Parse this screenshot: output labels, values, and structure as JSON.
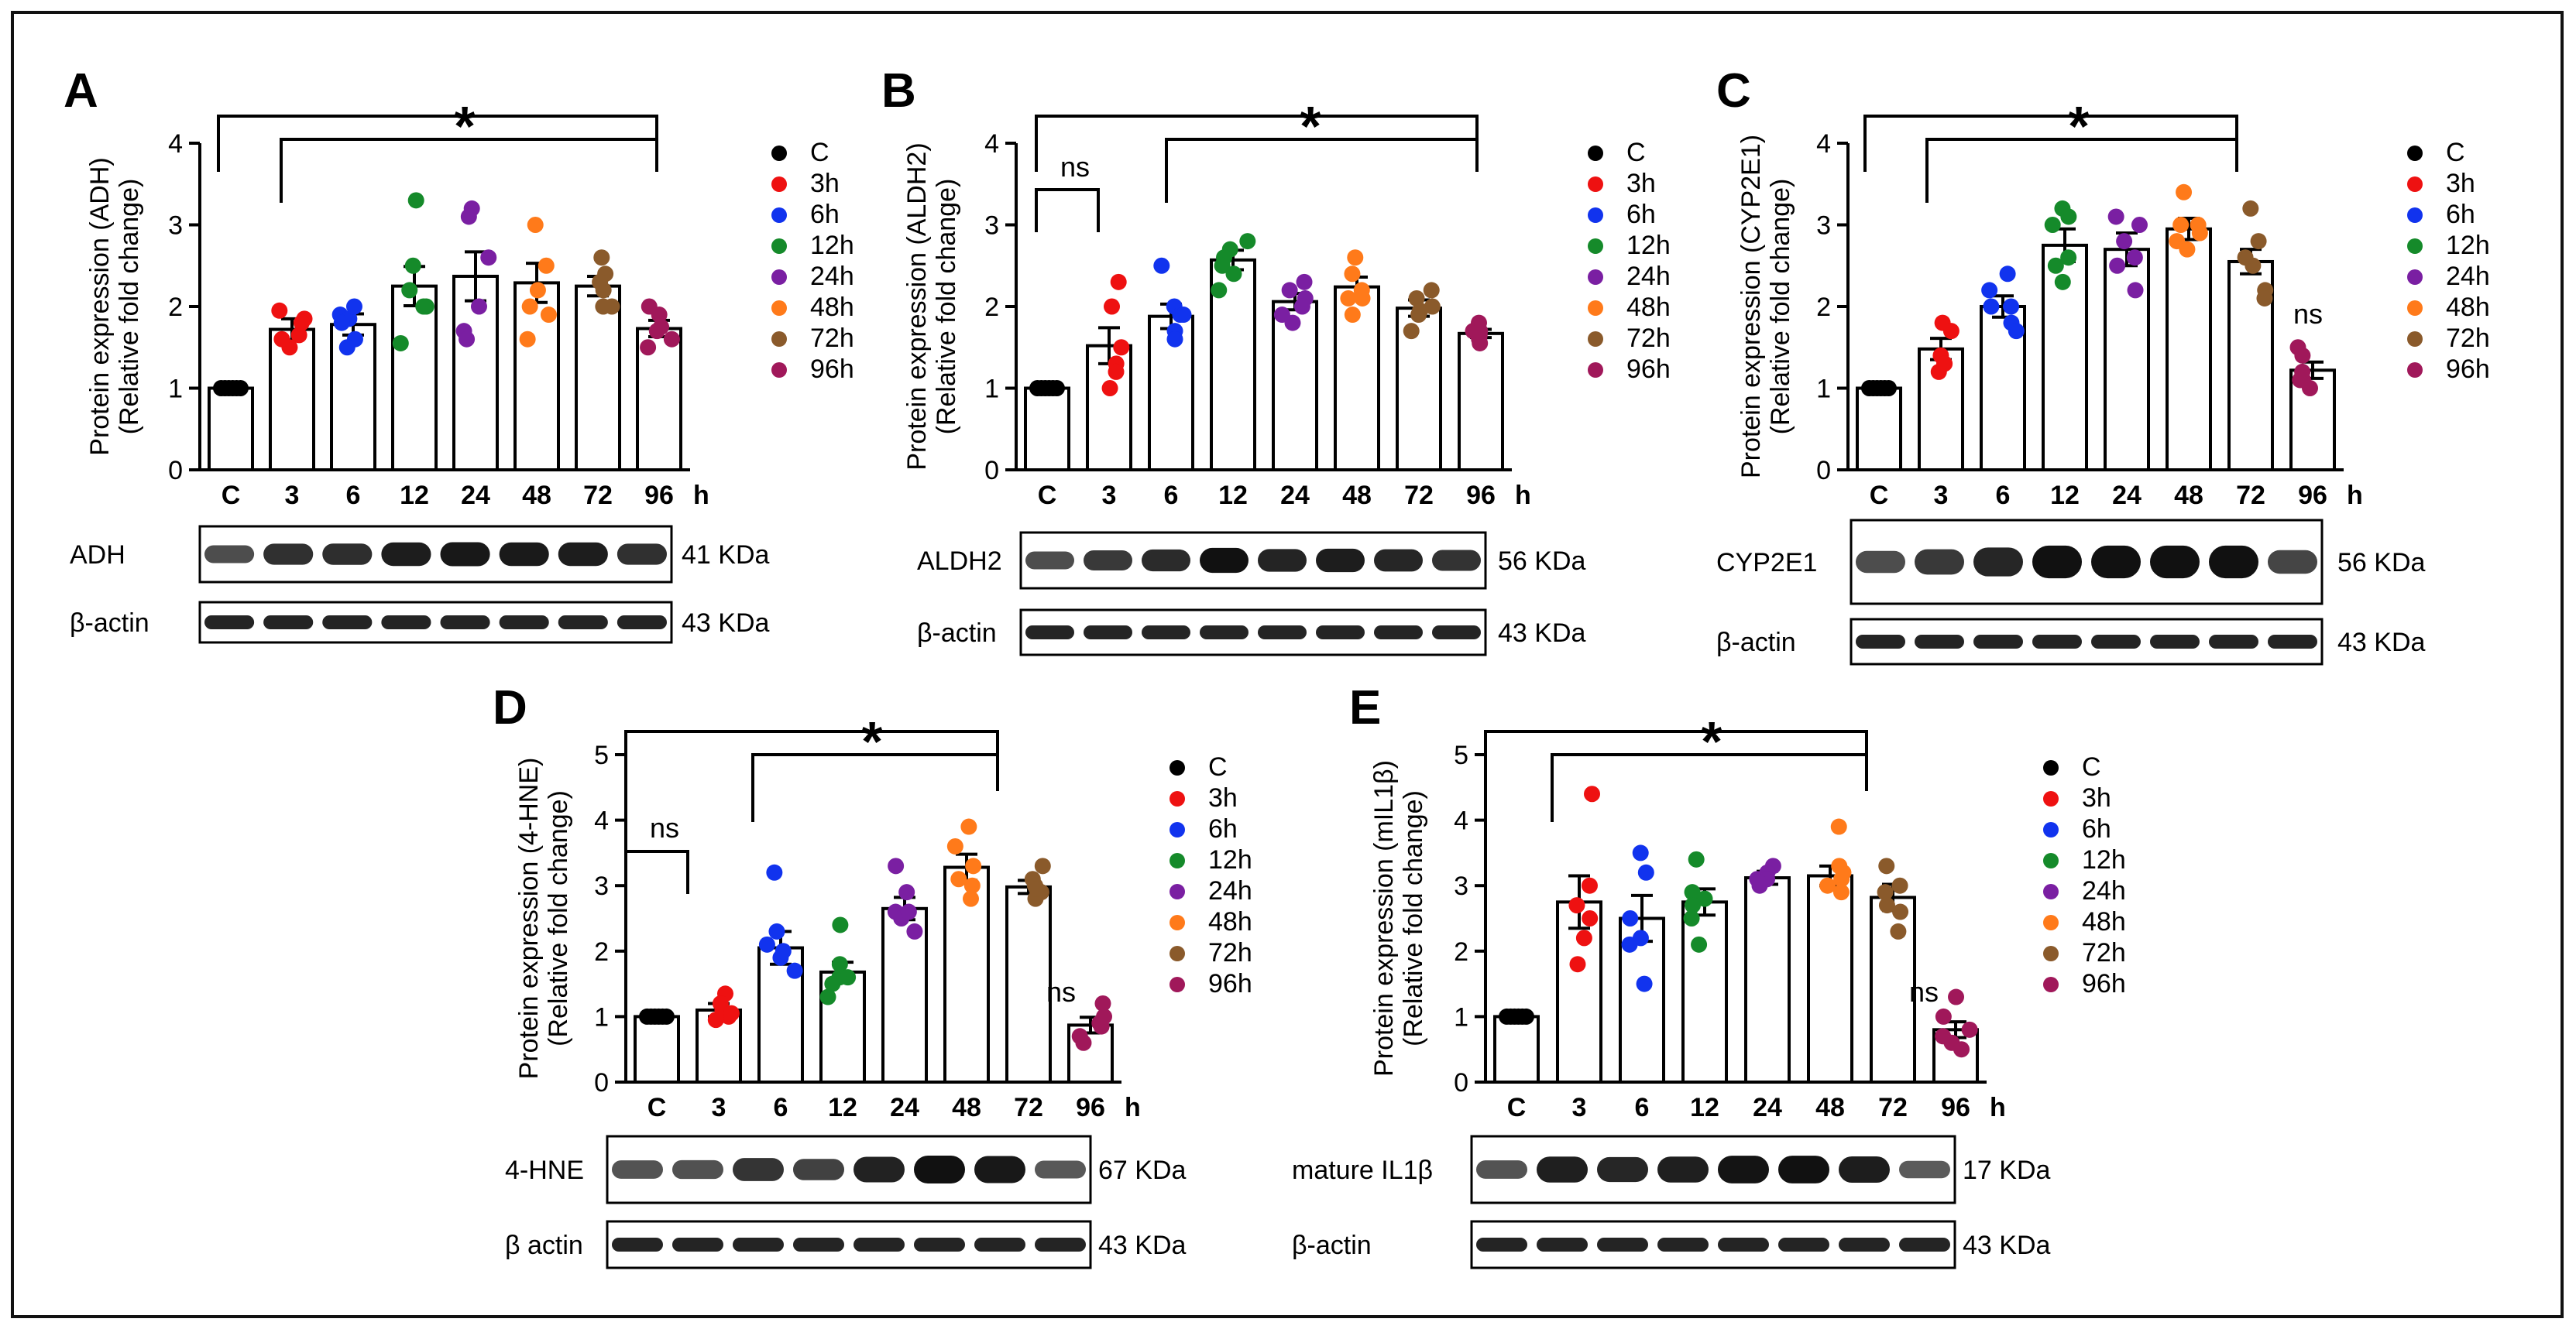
{
  "legend_entries": [
    "C",
    "3h",
    "6h",
    "12h",
    "24h",
    "48h",
    "72h",
    "96h"
  ],
  "legend_colors": [
    "#000000",
    "#ee1111",
    "#1133ee",
    "#158a2a",
    "#7a1fa2",
    "#ff7a1a",
    "#8a5a2b",
    "#a0185a"
  ],
  "x_unit": "h",
  "chart_data": [
    {
      "type": "bar",
      "panel": "A",
      "ylabel_line1": "Protein expression (ADH)",
      "ylabel_line2": "(Relative fold change)",
      "categories": [
        "C",
        "3",
        "6",
        "12",
        "24",
        "48",
        "72",
        "96"
      ],
      "values": [
        1.0,
        1.72,
        1.78,
        2.25,
        2.37,
        2.29,
        2.25,
        1.73
      ],
      "errors": [
        0.01,
        0.13,
        0.13,
        0.24,
        0.3,
        0.24,
        0.12,
        0.1
      ],
      "points": [
        [
          1,
          1,
          1,
          1,
          1,
          1
        ],
        [
          1.85,
          1.65,
          1.95,
          1.5,
          1.8,
          1.6
        ],
        [
          1.9,
          1.6,
          1.85,
          1.5,
          2.0,
          1.8
        ],
        [
          3.3,
          2.5,
          2.2,
          2.0,
          1.55,
          2.0
        ],
        [
          3.2,
          3.1,
          2.6,
          2.0,
          1.7,
          1.6
        ],
        [
          3.0,
          2.5,
          2.2,
          1.9,
          2.0,
          1.6
        ],
        [
          2.6,
          2.4,
          2.3,
          2.2,
          2.0,
          2.0
        ],
        [
          2.0,
          1.9,
          1.75,
          1.5,
          1.7,
          1.6
        ]
      ],
      "ylim": [
        0,
        4
      ],
      "yticks": [
        0,
        1,
        2,
        3,
        4
      ],
      "significance": {
        "label": "*",
        "ns_label": ""
      },
      "blot": {
        "target": "ADH",
        "target_kda": "41 KDa",
        "loading": "β-actin",
        "loading_kda": "43 KDa"
      }
    },
    {
      "type": "bar",
      "panel": "B",
      "ylabel_line1": "Protein expression (ALDH2)",
      "ylabel_line2": "(Relative fold change)",
      "categories": [
        "C",
        "3",
        "6",
        "12",
        "24",
        "48",
        "72",
        "96"
      ],
      "values": [
        1.0,
        1.52,
        1.88,
        2.57,
        2.06,
        2.24,
        1.98,
        1.67
      ],
      "errors": [
        0.01,
        0.22,
        0.15,
        0.12,
        0.1,
        0.12,
        0.1,
        0.05
      ],
      "points": [
        [
          1,
          1,
          1,
          1,
          1,
          1
        ],
        [
          2.3,
          2.0,
          1.5,
          1.3,
          1.2,
          1.0
        ],
        [
          2.5,
          2.0,
          1.9,
          1.7,
          1.6,
          1.9
        ],
        [
          2.8,
          2.7,
          2.6,
          2.5,
          2.2,
          2.4
        ],
        [
          2.3,
          2.1,
          2.0,
          1.9,
          1.8,
          2.2
        ],
        [
          2.6,
          2.4,
          2.2,
          2.1,
          1.9,
          2.1
        ],
        [
          2.2,
          2.1,
          2.0,
          1.9,
          1.7,
          1.95
        ],
        [
          1.8,
          1.7,
          1.65,
          1.6,
          1.55,
          1.7
        ]
      ],
      "ylim": [
        0,
        4
      ],
      "yticks": [
        0,
        1,
        2,
        3,
        4
      ],
      "significance": {
        "label": "*",
        "ns_label": "ns"
      },
      "blot": {
        "target": "ALDH2",
        "target_kda": "56 KDa",
        "loading": "β-actin",
        "loading_kda": "43 KDa"
      }
    },
    {
      "type": "bar",
      "panel": "C",
      "ylabel_line1": "Protein expression (CYP2E1)",
      "ylabel_line2": "(Relative fold change)",
      "categories": [
        "C",
        "3",
        "6",
        "12",
        "24",
        "48",
        "72",
        "96"
      ],
      "values": [
        1.0,
        1.48,
        2.0,
        2.75,
        2.7,
        2.95,
        2.55,
        1.22
      ],
      "errors": [
        0.01,
        0.13,
        0.13,
        0.2,
        0.2,
        0.13,
        0.15,
        0.1
      ],
      "points": [
        [
          1,
          1,
          1,
          1,
          1,
          1
        ],
        [
          1.8,
          1.7,
          1.4,
          1.3,
          1.2,
          1.3
        ],
        [
          2.4,
          2.2,
          2.0,
          1.8,
          1.7,
          2.0
        ],
        [
          3.2,
          3.1,
          3.0,
          2.5,
          2.3,
          2.6
        ],
        [
          3.1,
          3.0,
          2.8,
          2.5,
          2.2,
          2.6
        ],
        [
          3.4,
          3.0,
          2.9,
          2.8,
          2.7,
          3.0
        ],
        [
          3.2,
          2.8,
          2.5,
          2.2,
          2.1,
          2.6
        ],
        [
          1.5,
          1.4,
          1.2,
          1.1,
          1.0,
          1.1
        ]
      ],
      "ylim": [
        0,
        4
      ],
      "yticks": [
        0,
        1,
        2,
        3,
        4
      ],
      "significance": {
        "label": "*",
        "ns_label": "ns"
      },
      "blot": {
        "target": "CYP2E1",
        "target_kda": "56 KDa",
        "loading": "β-actin",
        "loading_kda": "43 KDa"
      }
    },
    {
      "type": "bar",
      "panel": "D",
      "ylabel_line1": "Protein expression (4-HNE)",
      "ylabel_line2": "(Relative fold change)",
      "categories": [
        "C",
        "3",
        "6",
        "12",
        "24",
        "48",
        "72",
        "96"
      ],
      "values": [
        1.0,
        1.1,
        2.05,
        1.68,
        2.65,
        3.28,
        2.98,
        0.87
      ],
      "errors": [
        0.01,
        0.1,
        0.25,
        0.15,
        0.17,
        0.2,
        0.1,
        0.12
      ],
      "points": [
        [
          1,
          1,
          1,
          1,
          1,
          1
        ],
        [
          1.35,
          1.2,
          1.1,
          1.0,
          0.95,
          1.05
        ],
        [
          3.2,
          2.3,
          2.1,
          1.9,
          1.7,
          2.0
        ],
        [
          2.4,
          1.8,
          1.6,
          1.5,
          1.3,
          1.6
        ],
        [
          3.3,
          2.9,
          2.6,
          2.5,
          2.3,
          2.6
        ],
        [
          3.9,
          3.6,
          3.3,
          3.0,
          2.8,
          3.1
        ],
        [
          3.3,
          3.1,
          3.0,
          2.9,
          2.8,
          2.95
        ],
        [
          1.2,
          1.0,
          0.9,
          0.7,
          0.6,
          0.85
        ]
      ],
      "ylim": [
        0,
        5
      ],
      "yticks": [
        0,
        1,
        2,
        3,
        4,
        5
      ],
      "significance": {
        "label": "*",
        "ns_label": "ns"
      },
      "blot": {
        "target": "4-HNE",
        "target_kda": "67 KDa",
        "loading": "β actin",
        "loading_kda": "43 KDa"
      }
    },
    {
      "type": "bar",
      "panel": "E",
      "ylabel_line1": "Protein expression (mIL1β)",
      "ylabel_line2": "(Relative fold change)",
      "categories": [
        "C",
        "3",
        "6",
        "12",
        "24",
        "48",
        "72",
        "96"
      ],
      "values": [
        1.0,
        2.75,
        2.5,
        2.75,
        3.12,
        3.15,
        2.82,
        0.8
      ],
      "errors": [
        0.01,
        0.4,
        0.35,
        0.2,
        0.1,
        0.15,
        0.2,
        0.12
      ],
      "points": [
        [
          1,
          1,
          1,
          1,
          1,
          1
        ],
        [
          4.4,
          3.0,
          2.7,
          2.2,
          1.8,
          2.5
        ],
        [
          3.5,
          3.2,
          2.5,
          2.1,
          1.5,
          2.2
        ],
        [
          3.4,
          2.9,
          2.8,
          2.5,
          2.1,
          2.7
        ],
        [
          3.3,
          3.2,
          3.1,
          3.0,
          3.1,
          3.05
        ],
        [
          3.9,
          3.3,
          3.2,
          3.0,
          2.9,
          3.1
        ],
        [
          3.3,
          3.0,
          2.9,
          2.7,
          2.3,
          2.6
        ],
        [
          1.3,
          1.0,
          0.8,
          0.6,
          0.5,
          0.7
        ]
      ],
      "ylim": [
        0,
        5
      ],
      "yticks": [
        0,
        1,
        2,
        3,
        4,
        5
      ],
      "significance": {
        "label": "*",
        "ns_label": "ns"
      },
      "blot": {
        "target": "mature IL1β",
        "target_kda": "17 KDa",
        "loading": "β-actin",
        "loading_kda": "43 KDa"
      }
    }
  ]
}
